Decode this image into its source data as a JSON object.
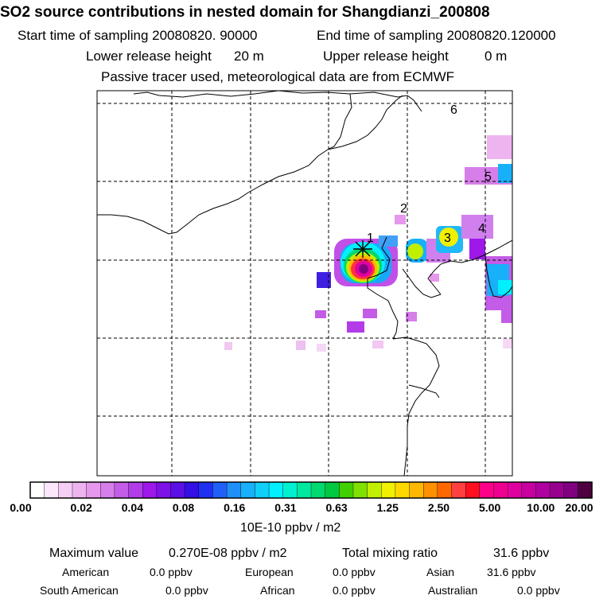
{
  "header": {
    "title": "SO2 source contributions in nested domain for Shangdianzi_200808",
    "start_label": "Start time of sampling 20080820. 90000",
    "end_label": "End time of sampling 20080820.120000",
    "lower_label": "Lower release height",
    "lower_value": "20 m",
    "upper_label": "Upper release height",
    "upper_value": "0 m",
    "note": "Passive tracer used, meteorological data are from ECMWF"
  },
  "chart_data": {
    "type": "heatmap",
    "title": "SO2 source contributions in nested domain for Shangdianzi_200808",
    "colorbar": {
      "unit_label": "10E-10 ppbv / m2",
      "tick_labels": [
        "0.00",
        "0.02",
        "0.04",
        "0.08",
        "0.16",
        "0.31",
        "0.63",
        "1.25",
        "2.50",
        "5.00",
        "10.00",
        "20.00"
      ],
      "colors": [
        "#ffffff",
        "#fbe6fb",
        "#f5cef5",
        "#eeb4f0",
        "#e598ec",
        "#d67ee9",
        "#c35ce6",
        "#b23ce8",
        "#9e18ea",
        "#7e10e8",
        "#5a10e6",
        "#3410e6",
        "#2030f0",
        "#2060f8",
        "#2090f8",
        "#18b0f8",
        "#10d0f8",
        "#00f0ff",
        "#00f0d0",
        "#00e8a0",
        "#00d870",
        "#00c840",
        "#40d000",
        "#80e000",
        "#c0f000",
        "#f0f000",
        "#ffd800",
        "#ffb800",
        "#ff9000",
        "#ff6800",
        "#ff4040",
        "#ff1020",
        "#ff0088",
        "#f00090",
        "#e000a0",
        "#c800a0",
        "#b000a0",
        "#980090",
        "#800080",
        "#500040"
      ]
    },
    "markers": [
      {
        "label": "1"
      },
      {
        "label": "2"
      },
      {
        "label": "3"
      },
      {
        "label": "4"
      },
      {
        "label": "5"
      },
      {
        "label": "6"
      }
    ],
    "receptor": "Shangdianzi"
  },
  "footer": {
    "max_label": "Maximum value",
    "max_value": "0.270E-08 ppbv / m2",
    "total_label": "Total mixing ratio",
    "total_value": "31.6 ppbv",
    "regions": [
      {
        "name": "American",
        "value": "0.0 ppbv"
      },
      {
        "name": "European",
        "value": "0.0 ppbv"
      },
      {
        "name": "Asian",
        "value": "31.6 ppbv"
      },
      {
        "name": "South American",
        "value": "0.0 ppbv"
      },
      {
        "name": "African",
        "value": "0.0 ppbv"
      },
      {
        "name": "Australian",
        "value": "0.0 ppbv"
      }
    ]
  }
}
